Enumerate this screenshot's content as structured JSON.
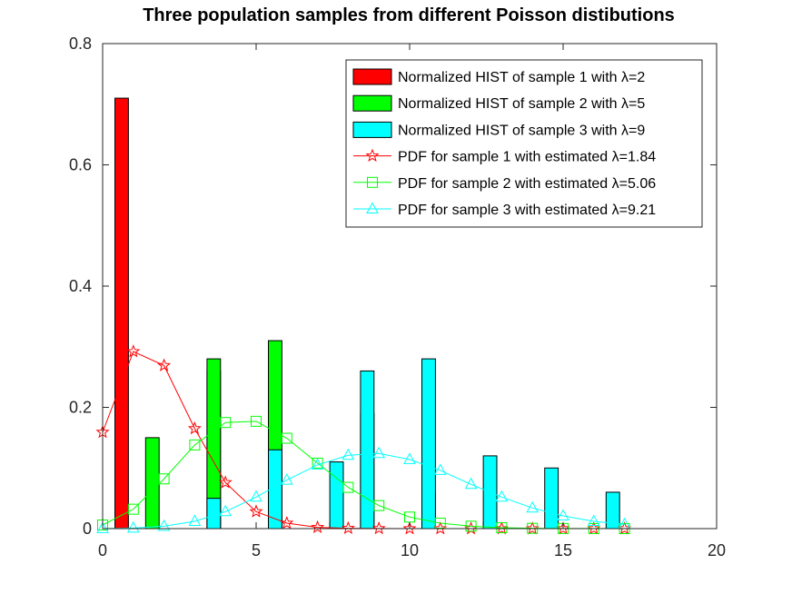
{
  "chart_data": {
    "type": "bar",
    "title": "Three population samples from different Poisson distibutions",
    "xlabel": "",
    "ylabel": "",
    "xlim": [
      0,
      20
    ],
    "ylim": [
      0,
      0.8
    ],
    "xticks": [
      "0",
      "5",
      "10",
      "15",
      "20"
    ],
    "yticks": [
      "0",
      "0.2",
      "0.4",
      "0.6",
      "0.8"
    ],
    "grid": false,
    "legend_position": "top-right",
    "bar_series": [
      {
        "name": "Normalized HIST of sample 1 with λ=2",
        "color": "#ff0000",
        "x": [
          0,
          3,
          5,
          7,
          9,
          11,
          13
        ],
        "values": [
          0.71,
          0.26,
          0.02,
          0.01,
          0,
          0,
          0
        ]
      },
      {
        "name": "Normalized HIST of sample 2 with λ=5",
        "color": "#00ff00",
        "x": [
          1,
          3,
          5,
          8,
          10,
          12,
          14
        ],
        "values": [
          0.15,
          0.28,
          0.31,
          0.19,
          0.06,
          0.01,
          0
        ]
      },
      {
        "name": "Normalized HIST of sample 3 with λ=9",
        "color": "#00ffff",
        "x": [
          3,
          5,
          7,
          8,
          10,
          12,
          14,
          16
        ],
        "values": [
          0.05,
          0.13,
          0.11,
          0.26,
          0.28,
          0.12,
          0.1,
          0.06
        ]
      }
    ],
    "line_series": [
      {
        "name": "PDF for sample 1 with estimated λ=1.84",
        "color": "#ff0000",
        "marker": "star",
        "x": [
          0,
          1,
          2,
          3,
          4,
          5,
          6,
          7,
          8,
          9,
          10,
          11,
          12,
          13,
          14,
          15,
          16,
          17
        ],
        "values": [
          0.159,
          0.292,
          0.269,
          0.165,
          0.076,
          0.028,
          0.009,
          0.002,
          0.0005,
          0.0001,
          0,
          0,
          0,
          0,
          0,
          0,
          0,
          0
        ]
      },
      {
        "name": "PDF for sample 2 with estimated λ=5.06",
        "color": "#00ff00",
        "marker": "square",
        "x": [
          0,
          1,
          2,
          3,
          4,
          5,
          6,
          7,
          8,
          9,
          10,
          11,
          12,
          13,
          14,
          15,
          16,
          17
        ],
        "values": [
          0.006,
          0.032,
          0.082,
          0.138,
          0.175,
          0.177,
          0.149,
          0.108,
          0.068,
          0.038,
          0.019,
          0.009,
          0.004,
          0.0015,
          0.0005,
          0.0002,
          0.0001,
          0
        ]
      },
      {
        "name": "PDF for sample 3 with estimated λ=9.21",
        "color": "#00ffff",
        "marker": "triangle",
        "x": [
          0,
          1,
          2,
          3,
          4,
          5,
          6,
          7,
          8,
          9,
          10,
          11,
          12,
          13,
          14,
          15,
          16,
          17
        ],
        "values": [
          0.0001,
          0.0009,
          0.004,
          0.012,
          0.028,
          0.052,
          0.08,
          0.105,
          0.121,
          0.124,
          0.114,
          0.096,
          0.073,
          0.052,
          0.034,
          0.021,
          0.012,
          0.007
        ]
      }
    ]
  }
}
